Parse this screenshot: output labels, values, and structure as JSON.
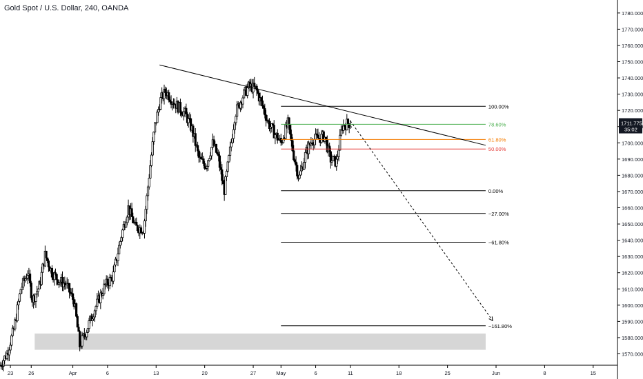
{
  "symbol_title": "Gold Spot / U.S. Dollar, 240, OANDA",
  "price_badge": {
    "price": "1711.775",
    "countdown": "35:02",
    "bg": "#131722",
    "fg": "#ffffff"
  },
  "colors": {
    "candle": "#000000",
    "grid_axis": "#787b86",
    "fib_default": "#000000",
    "fib_786": "#4caf50",
    "fib_618": "#f57c00",
    "fib_500": "#e53935",
    "support_zone": "#d6d6d6"
  },
  "chart_data": {
    "type": "candlestick",
    "instrument": "Gold Spot / U.S. Dollar",
    "interval": "240",
    "source": "OANDA",
    "y_ticks": [
      1570,
      1580,
      1590,
      1600,
      1610,
      1620,
      1630,
      1640,
      1650,
      1660,
      1670,
      1680,
      1690,
      1700,
      1710,
      1720,
      1730,
      1740,
      1750,
      1760,
      1770,
      1780
    ],
    "y_tick_labels": [
      "1570.000",
      "1580.000",
      "1590.000",
      "1600.000",
      "1610.000",
      "1620.000",
      "1630.000",
      "1640.000",
      "1650.000",
      "1660.000",
      "1670.000",
      "1680.000",
      "1690.000",
      "1700.000",
      "1710.000",
      "1720.000",
      "1730.000",
      "1740.000",
      "1750.000",
      "1760.000",
      "1770.000",
      "1780.000"
    ],
    "ylim": [
      1563,
      1788
    ],
    "x_tick_labels": [
      "23",
      "26",
      "Apr",
      "6",
      "13",
      "20",
      "27",
      "May",
      "6",
      "11",
      "18",
      "25",
      "Jun",
      "8",
      "15"
    ],
    "x_tick_days": [
      0,
      3,
      9,
      14,
      21,
      28,
      35,
      39,
      44,
      49,
      56,
      63,
      70,
      77,
      84
    ],
    "xlim_days": [
      -1.5,
      87.5
    ],
    "last_price": 1711.775,
    "fibonacci_levels": [
      {
        "label": "100.00%",
        "price": 1722.5
      },
      {
        "label": "78.60%",
        "price": 1711.4
      },
      {
        "label": "61.80%",
        "price": 1702.1
      },
      {
        "label": "50.00%",
        "price": 1696.2
      },
      {
        "label": "0.00%",
        "price": 1670.5
      },
      {
        "label": "−27.00%",
        "price": 1656.5
      },
      {
        "label": "−61.80%",
        "price": 1638.8
      },
      {
        "label": "−161.80%",
        "price": 1587.3
      }
    ],
    "fib_x_range_days": [
      39.0,
      68.5
    ],
    "trendline": {
      "start": {
        "day": 21.5,
        "price": 1748
      },
      "end": {
        "day": 68.5,
        "price": 1698.5
      }
    },
    "projection": {
      "start": {
        "day": 49.0,
        "price": 1713.5
      },
      "end": {
        "day": 69.5,
        "price": 1590.5
      }
    },
    "support_zone": {
      "x_days": [
        3.5,
        68.5
      ],
      "price_range": [
        1572.5,
        1582.5
      ]
    },
    "ohlc_anchors_days_prices": [
      [
        -1.5,
        1563
      ],
      [
        -0.5,
        1570
      ],
      [
        0.5,
        1585
      ],
      [
        1.5,
        1610
      ],
      [
        2.5,
        1620
      ],
      [
        3.2,
        1603
      ],
      [
        4.2,
        1612
      ],
      [
        5.0,
        1631
      ],
      [
        6.0,
        1620
      ],
      [
        7.0,
        1615
      ],
      [
        8.0,
        1613
      ],
      [
        9.2,
        1602
      ],
      [
        10.0,
        1575
      ],
      [
        11.0,
        1585
      ],
      [
        12.0,
        1596
      ],
      [
        13.5,
        1611
      ],
      [
        14.8,
        1618
      ],
      [
        16.0,
        1643
      ],
      [
        17.0,
        1660
      ],
      [
        18.0,
        1648
      ],
      [
        19.2,
        1647
      ],
      [
        20.0,
        1680
      ],
      [
        20.8,
        1710
      ],
      [
        21.6,
        1726
      ],
      [
        22.4,
        1732
      ],
      [
        23.2,
        1727
      ],
      [
        24.2,
        1722
      ],
      [
        25.2,
        1718
      ],
      [
        26.2,
        1708
      ],
      [
        27.2,
        1690
      ],
      [
        28.2,
        1686
      ],
      [
        29.2,
        1700
      ],
      [
        30.0,
        1690
      ],
      [
        30.8,
        1670
      ],
      [
        31.6,
        1693
      ],
      [
        32.4,
        1718
      ],
      [
        33.4,
        1728
      ],
      [
        34.4,
        1735
      ],
      [
        35.4,
        1733
      ],
      [
        36.4,
        1722
      ],
      [
        37.2,
        1712
      ],
      [
        38.2,
        1705
      ],
      [
        39.0,
        1700
      ],
      [
        40.0,
        1712
      ],
      [
        40.8,
        1693
      ],
      [
        41.6,
        1678
      ],
      [
        42.6,
        1694
      ],
      [
        43.5,
        1702
      ],
      [
        44.5,
        1703
      ],
      [
        45.3,
        1704
      ],
      [
        46.1,
        1690
      ],
      [
        47.0,
        1688
      ],
      [
        47.8,
        1710
      ],
      [
        48.6,
        1712
      ]
    ]
  }
}
